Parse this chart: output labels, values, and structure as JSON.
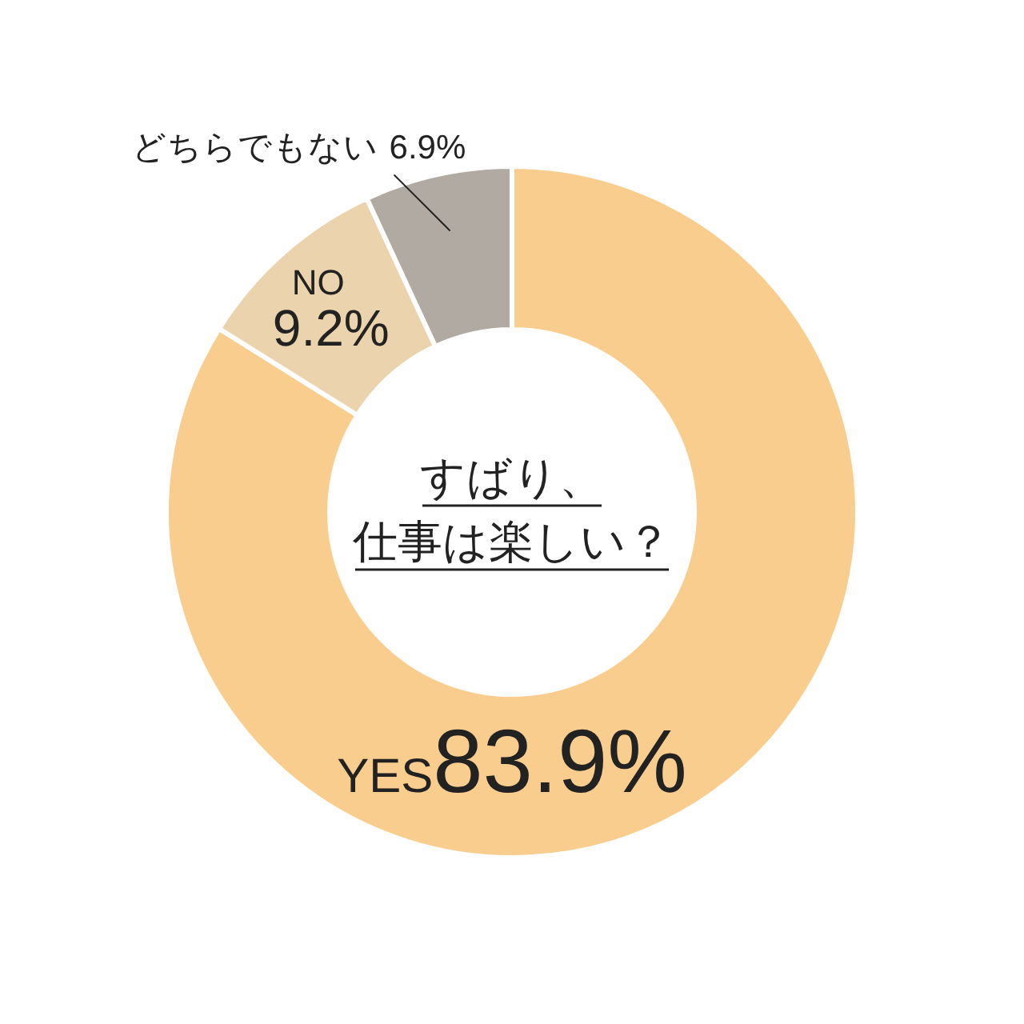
{
  "chart_data": {
    "type": "donut",
    "title": "すばり、",
    "subtitle": "仕事は楽しい？",
    "categories": [
      "YES",
      "NO",
      "どちらでもない"
    ],
    "values": [
      83.9,
      9.2,
      6.9
    ],
    "colors": [
      "#f9cd8e",
      "#ead3ad",
      "#b1aaa3"
    ],
    "value_labels": [
      "83.9%",
      "9.2%",
      "6.9%"
    ]
  }
}
